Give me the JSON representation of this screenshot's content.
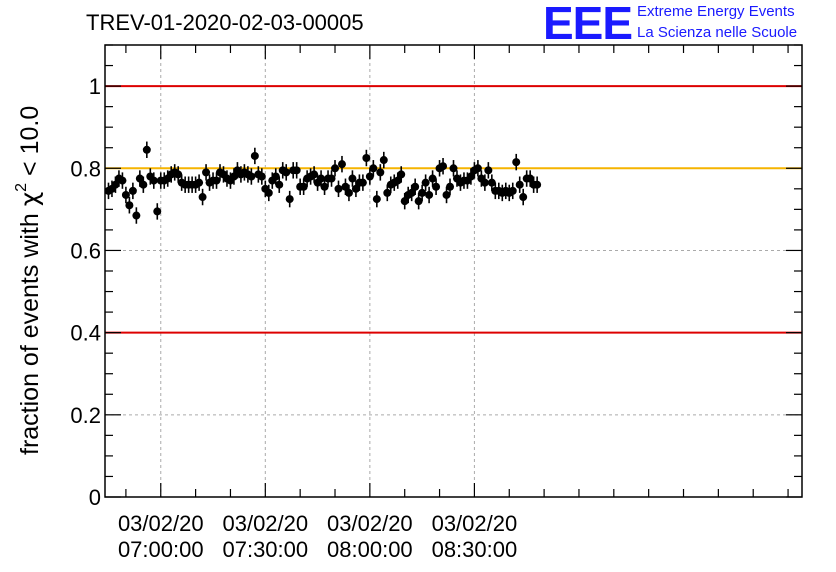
{
  "header": {
    "title": "TREV-01-2020-02-03-00005",
    "logo": {
      "mark": "EEE",
      "line1": "Extreme Energy Events",
      "line2": "La Scienza nelle Scuole"
    }
  },
  "colors": {
    "axis": "#000000",
    "grid": "#aaaaaa",
    "marker": "#000000",
    "reference_red": "#dd0000",
    "reference_orange": "#f5b400",
    "logo": "#1a1aff"
  },
  "chart_data": {
    "type": "scatter",
    "title": "TREV-01-2020-02-03-00005",
    "ylabel": "fraction of events with χ² < 10.0",
    "ylabel_parts": {
      "prefix": "fraction of events with ",
      "symbol": "χ",
      "superscript": "2",
      "suffix": " < 10.0"
    },
    "xlabel": "",
    "x_unit": "minutes after 03/02/20 07:00:00",
    "xlim": [
      -16,
      184
    ],
    "ylim": [
      0,
      1.1
    ],
    "yticks": [
      0,
      0.2,
      0.4,
      0.6,
      0.8,
      1
    ],
    "ytick_labels": [
      "0",
      "0.2",
      "0.4",
      "0.6",
      "0.8",
      "1"
    ],
    "xticks": [
      0,
      30,
      60,
      90
    ],
    "xtick_labels": [
      {
        "date": "03/02/20",
        "time": "07:00:00"
      },
      {
        "date": "03/02/20",
        "time": "07:30:00"
      },
      {
        "date": "03/02/20",
        "time": "08:00:00"
      },
      {
        "date": "03/02/20",
        "time": "08:30:00"
      }
    ],
    "grid": true,
    "reference_lines": [
      {
        "y": 1.0,
        "color": "#dd0000"
      },
      {
        "y": 0.8,
        "color": "#f5b400"
      },
      {
        "y": 0.4,
        "color": "#dd0000"
      }
    ],
    "series": [
      {
        "x_start": -15,
        "x_step": 1,
        "y": [
          0.745,
          0.75,
          0.76,
          0.775,
          0.77,
          0.735,
          0.71,
          0.745,
          0.685,
          0.775,
          0.76,
          0.845,
          0.78,
          0.77,
          0.695,
          0.77,
          0.77,
          0.775,
          0.785,
          0.79,
          0.785,
          0.765,
          0.76,
          0.76,
          0.76,
          0.76,
          0.765,
          0.73,
          0.79,
          0.765,
          0.77,
          0.77,
          0.79,
          0.785,
          0.775,
          0.77,
          0.78,
          0.795,
          0.785,
          0.79,
          0.785,
          0.78,
          0.83,
          0.785,
          0.78,
          0.75,
          0.74,
          0.77,
          0.78,
          0.76,
          0.795,
          0.79,
          0.725,
          0.795,
          0.795,
          0.755,
          0.755,
          0.775,
          0.78,
          0.785,
          0.765,
          0.775,
          0.755,
          0.775,
          0.775,
          0.8,
          0.75,
          0.81,
          0.755,
          0.74,
          0.775,
          0.75,
          0.765,
          0.765,
          0.825,
          0.78,
          0.8,
          0.725,
          0.79,
          0.82,
          0.74,
          0.76,
          0.765,
          0.77,
          0.785,
          0.72,
          0.735,
          0.74,
          0.755,
          0.72,
          0.74,
          0.765,
          0.735,
          0.775,
          0.755,
          0.8,
          0.805,
          0.735,
          0.755,
          0.8,
          0.775,
          0.765,
          0.77,
          0.77,
          0.78,
          0.795,
          0.8,
          0.775,
          0.765,
          0.795,
          0.765,
          0.745,
          0.745,
          0.74,
          0.745,
          0.74,
          0.745,
          0.815,
          0.76,
          0.73,
          0.775,
          0.775,
          0.76,
          0.76
        ],
        "yerr": 0.02
      }
    ]
  }
}
